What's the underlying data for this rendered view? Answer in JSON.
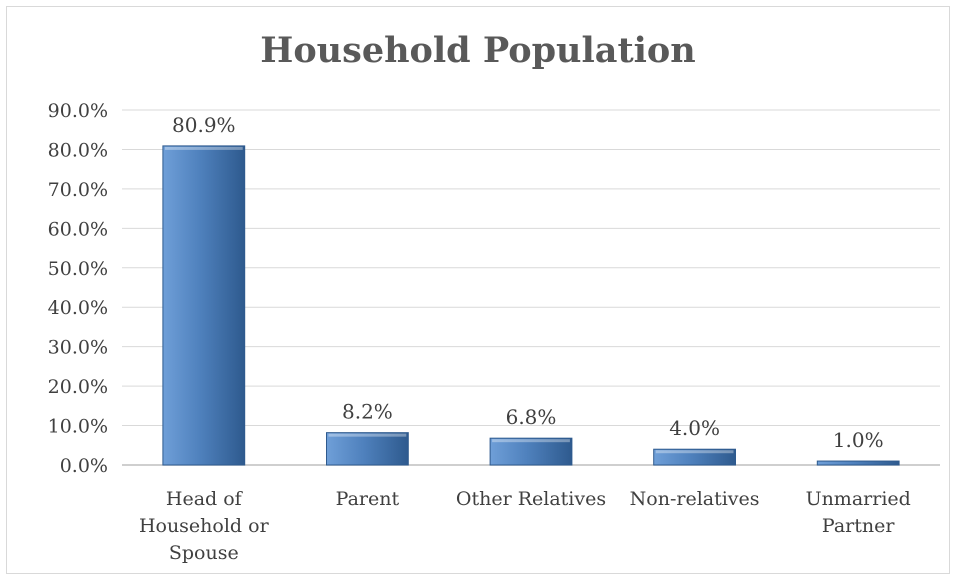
{
  "chart_data": {
    "type": "bar",
    "title": "Household Population",
    "categories": [
      [
        "Head of",
        "Household or",
        "Spouse"
      ],
      [
        "Parent"
      ],
      [
        "Other Relatives"
      ],
      [
        "Non-relatives"
      ],
      [
        "Unmarried",
        "Partner"
      ]
    ],
    "values": [
      80.9,
      8.2,
      6.8,
      4.0,
      1.0
    ],
    "data_labels": [
      "80.9%",
      "8.2%",
      "6.8%",
      "4.0%",
      "1.0%"
    ],
    "y_ticks": [
      "0.0%",
      "10.0%",
      "20.0%",
      "30.0%",
      "40.0%",
      "50.0%",
      "60.0%",
      "70.0%",
      "80.0%",
      "90.0%"
    ],
    "ylim": [
      0,
      90
    ],
    "grid": true,
    "legend": "none",
    "colors": {
      "bar_light": "#6f9fd8",
      "bar_mid": "#4f81bd",
      "bar_dark": "#2e5a8e",
      "grid": "#d9d9d9",
      "axis": "#bfbfbf",
      "title": "#595959"
    }
  }
}
